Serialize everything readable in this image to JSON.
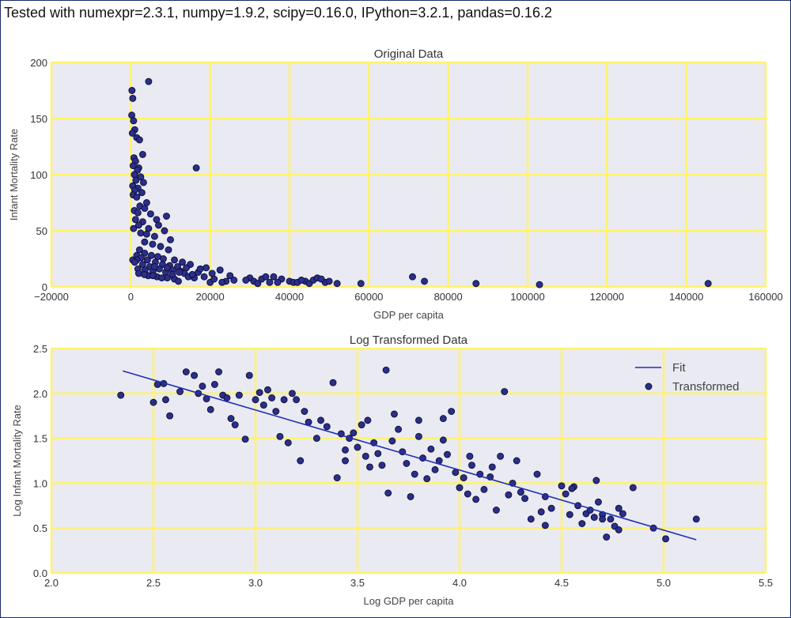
{
  "header": {
    "text": "Tested with numexpr=2.3.1, numpy=1.9.2, scipy=0.16.0, IPython=3.2.1, pandas=0.16.2"
  },
  "colors": {
    "background": "#eaeaf2",
    "grid": "#fff36b",
    "marker_fill": "#2b2f8a",
    "marker_edge": "#0b0c33",
    "fit_line": "#1f2fb5"
  },
  "chart_data": [
    {
      "type": "scatter",
      "title": "Original Data",
      "xlabel": "GDP per capita",
      "ylabel": "Infant Mortality Rate",
      "xlim": [
        -20000,
        160000
      ],
      "ylim": [
        0,
        200
      ],
      "xticks": [
        -20000,
        0,
        20000,
        40000,
        60000,
        80000,
        100000,
        120000,
        140000,
        160000
      ],
      "yticks": [
        0,
        50,
        100,
        150,
        200
      ],
      "xtick_labels": [
        "−20000",
        "0",
        "20000",
        "40000",
        "60000",
        "80000",
        "100000",
        "120000",
        "140000",
        "160000"
      ],
      "ytick_labels": [
        "0",
        "50",
        "100",
        "150",
        "200"
      ],
      "grid": true,
      "series": [
        {
          "points": [
            [
              300,
              175
            ],
            [
              500,
              168
            ],
            [
              250,
              153
            ],
            [
              700,
              148
            ],
            [
              1000,
              140
            ],
            [
              400,
              137
            ],
            [
              1500,
              133
            ],
            [
              2200,
              131
            ],
            [
              4500,
              183
            ],
            [
              3000,
              118
            ],
            [
              800,
              115
            ],
            [
              1200,
              112
            ],
            [
              600,
              108
            ],
            [
              2000,
              106
            ],
            [
              1700,
              104
            ],
            [
              900,
              100
            ],
            [
              2500,
              98
            ],
            [
              1300,
              95
            ],
            [
              3200,
              93
            ],
            [
              500,
              90
            ],
            [
              1800,
              88
            ],
            [
              1000,
              86
            ],
            [
              2800,
              84
            ],
            [
              600,
              82
            ],
            [
              1500,
              80
            ],
            [
              4000,
              75
            ],
            [
              2300,
              72
            ],
            [
              3500,
              70
            ],
            [
              900,
              68
            ],
            [
              1800,
              66
            ],
            [
              5000,
              65
            ],
            [
              6500,
              60
            ],
            [
              9000,
              63
            ],
            [
              3000,
              58
            ],
            [
              7000,
              55
            ],
            [
              4500,
              52
            ],
            [
              8500,
              50
            ],
            [
              2500,
              48
            ],
            [
              6000,
              45
            ],
            [
              10000,
              42
            ],
            [
              3500,
              40
            ],
            [
              5500,
              38
            ],
            [
              16500,
              106
            ],
            [
              1200,
              60
            ],
            [
              2000,
              55
            ],
            [
              700,
              52
            ],
            [
              4000,
              47
            ],
            [
              7500,
              36
            ],
            [
              9500,
              33
            ],
            [
              2200,
              33
            ],
            [
              3500,
              30
            ],
            [
              5200,
              28
            ],
            [
              6800,
              27
            ],
            [
              8200,
              25
            ],
            [
              11000,
              24
            ],
            [
              13000,
              22
            ],
            [
              15000,
              20
            ],
            [
              1500,
              28
            ],
            [
              2600,
              26
            ],
            [
              4200,
              24
            ],
            [
              6200,
              22
            ],
            [
              8000,
              20
            ],
            [
              9800,
              19
            ],
            [
              11800,
              18
            ],
            [
              14000,
              17
            ],
            [
              3000,
              20
            ],
            [
              4800,
              18
            ],
            [
              7200,
              16
            ],
            [
              10500,
              15
            ],
            [
              12500,
              14
            ],
            [
              1800,
              16
            ],
            [
              3600,
              15
            ],
            [
              5600,
              14
            ],
            [
              8800,
              13
            ],
            [
              13500,
              12
            ],
            [
              2000,
              12
            ],
            [
              4400,
              10
            ],
            [
              6600,
              9
            ],
            [
              9200,
              8
            ],
            [
              11000,
              7
            ],
            [
              14500,
              9
            ],
            [
              16000,
              8
            ],
            [
              19000,
              17
            ],
            [
              20500,
              12
            ],
            [
              22500,
              15
            ],
            [
              25000,
              10
            ],
            [
              24000,
              5
            ],
            [
              20000,
              4
            ],
            [
              21000,
              7
            ],
            [
              23000,
              4
            ],
            [
              26000,
              6
            ],
            [
              30000,
              8
            ],
            [
              31000,
              5
            ],
            [
              33000,
              7
            ],
            [
              34000,
              9
            ],
            [
              35000,
              4
            ],
            [
              36000,
              9
            ],
            [
              38000,
              7
            ],
            [
              40000,
              5
            ],
            [
              41000,
              4
            ],
            [
              42000,
              4
            ],
            [
              44000,
              5
            ],
            [
              45000,
              3
            ],
            [
              46000,
              6
            ],
            [
              47000,
              8
            ],
            [
              49000,
              4
            ],
            [
              50000,
              5
            ],
            [
              52000,
              3
            ],
            [
              58000,
              3
            ],
            [
              71000,
              9
            ],
            [
              74000,
              5
            ],
            [
              87000,
              3
            ],
            [
              103000,
              2
            ],
            [
              145500,
              3
            ],
            [
              12000,
              5
            ],
            [
              15500,
              11
            ],
            [
              17000,
              13
            ],
            [
              18500,
              9
            ],
            [
              10500,
              11
            ],
            [
              7800,
              8
            ],
            [
              5600,
              10
            ],
            [
              3400,
              11
            ],
            [
              1500,
              24
            ],
            [
              500,
              24
            ],
            [
              1000,
              22
            ],
            [
              6000,
              18
            ],
            [
              9200,
              17
            ],
            [
              12200,
              13
            ],
            [
              17500,
              16
            ],
            [
              29000,
              6
            ],
            [
              32000,
              3
            ],
            [
              37000,
              4
            ],
            [
              43000,
              6
            ],
            [
              48000,
              7
            ]
          ]
        }
      ]
    },
    {
      "type": "scatter",
      "title": "Log Transformed Data",
      "xlabel": "Log GDP per capita",
      "ylabel": "Log Infant Mortality Rate",
      "xlim": [
        2.0,
        5.5
      ],
      "ylim": [
        0.0,
        2.5
      ],
      "xticks": [
        2.0,
        2.5,
        3.0,
        3.5,
        4.0,
        4.5,
        5.0,
        5.5
      ],
      "yticks": [
        0.0,
        0.5,
        1.0,
        1.5,
        2.0,
        2.5
      ],
      "xtick_labels": [
        "2.0",
        "2.5",
        "3.0",
        "3.5",
        "4.0",
        "4.5",
        "5.0",
        "5.5"
      ],
      "ytick_labels": [
        "0.0",
        "0.5",
        "1.0",
        "1.5",
        "2.0",
        "2.5"
      ],
      "grid": true,
      "legend_position": "top-right",
      "series": [
        {
          "name": "Fit",
          "kind": "line",
          "points": [
            [
              2.35,
              2.25
            ],
            [
              5.16,
              0.37
            ]
          ]
        },
        {
          "name": "Transformed",
          "kind": "scatter",
          "points": [
            [
              2.34,
              1.98
            ],
            [
              2.52,
              2.1
            ],
            [
              2.55,
              2.11
            ],
            [
              2.5,
              1.9
            ],
            [
              2.56,
              1.93
            ],
            [
              2.58,
              1.75
            ],
            [
              2.63,
              2.02
            ],
            [
              2.66,
              2.24
            ],
            [
              2.7,
              2.2
            ],
            [
              2.72,
              2.0
            ],
            [
              2.74,
              2.08
            ],
            [
              2.76,
              1.94
            ],
            [
              2.78,
              1.82
            ],
            [
              2.8,
              2.1
            ],
            [
              2.82,
              2.24
            ],
            [
              2.84,
              1.98
            ],
            [
              2.86,
              1.95
            ],
            [
              2.88,
              1.72
            ],
            [
              2.9,
              1.65
            ],
            [
              2.92,
              1.98
            ],
            [
              2.95,
              1.49
            ],
            [
              2.97,
              2.2
            ],
            [
              3.0,
              1.93
            ],
            [
              3.02,
              2.01
            ],
            [
              3.04,
              1.87
            ],
            [
              3.06,
              2.04
            ],
            [
              3.08,
              1.95
            ],
            [
              3.1,
              1.8
            ],
            [
              3.12,
              1.52
            ],
            [
              3.14,
              1.93
            ],
            [
              3.16,
              1.45
            ],
            [
              3.18,
              2.0
            ],
            [
              3.2,
              1.93
            ],
            [
              3.22,
              1.25
            ],
            [
              3.24,
              1.8
            ],
            [
              3.26,
              1.68
            ],
            [
              3.3,
              1.5
            ],
            [
              3.32,
              1.7
            ],
            [
              3.35,
              1.63
            ],
            [
              3.38,
              2.12
            ],
            [
              3.4,
              1.06
            ],
            [
              3.42,
              1.55
            ],
            [
              3.44,
              1.37
            ],
            [
              3.46,
              1.5
            ],
            [
              3.48,
              1.56
            ],
            [
              3.5,
              1.4
            ],
            [
              3.52,
              1.65
            ],
            [
              3.54,
              1.3
            ],
            [
              3.56,
              1.18
            ],
            [
              3.58,
              1.45
            ],
            [
              3.6,
              1.33
            ],
            [
              3.62,
              1.2
            ],
            [
              3.64,
              2.26
            ],
            [
              3.65,
              0.89
            ],
            [
              3.67,
              1.47
            ],
            [
              3.7,
              1.6
            ],
            [
              3.72,
              1.35
            ],
            [
              3.74,
              1.22
            ],
            [
              3.76,
              0.85
            ],
            [
              3.78,
              1.1
            ],
            [
              3.8,
              1.7
            ],
            [
              3.82,
              1.28
            ],
            [
              3.84,
              1.05
            ],
            [
              3.86,
              1.38
            ],
            [
              3.88,
              1.15
            ],
            [
              3.9,
              1.25
            ],
            [
              3.92,
              1.48
            ],
            [
              3.94,
              1.32
            ],
            [
              3.96,
              1.8
            ],
            [
              3.98,
              1.12
            ],
            [
              4.0,
              0.95
            ],
            [
              4.02,
              1.06
            ],
            [
              4.04,
              0.88
            ],
            [
              4.06,
              1.2
            ],
            [
              4.08,
              0.82
            ],
            [
              4.1,
              1.1
            ],
            [
              4.12,
              0.93
            ],
            [
              4.15,
              1.07
            ],
            [
              4.18,
              0.7
            ],
            [
              4.2,
              1.3
            ],
            [
              4.22,
              2.02
            ],
            [
              4.24,
              0.87
            ],
            [
              4.26,
              1.0
            ],
            [
              4.3,
              0.9
            ],
            [
              4.32,
              0.83
            ],
            [
              4.35,
              0.6
            ],
            [
              4.38,
              1.1
            ],
            [
              4.4,
              0.68
            ],
            [
              4.42,
              0.53
            ],
            [
              4.45,
              0.72
            ],
            [
              4.5,
              0.97
            ],
            [
              4.52,
              0.88
            ],
            [
              4.54,
              0.65
            ],
            [
              4.56,
              0.96
            ],
            [
              4.58,
              0.75
            ],
            [
              4.6,
              0.55
            ],
            [
              4.62,
              0.66
            ],
            [
              4.64,
              0.7
            ],
            [
              4.66,
              0.62
            ],
            [
              4.68,
              0.79
            ],
            [
              4.7,
              0.65
            ],
            [
              4.72,
              0.4
            ],
            [
              4.74,
              0.6
            ],
            [
              4.76,
              0.52
            ],
            [
              4.78,
              0.72
            ],
            [
              4.8,
              0.66
            ],
            [
              4.85,
              0.95
            ],
            [
              4.95,
              0.5
            ],
            [
              5.01,
              0.38
            ],
            [
              5.16,
              0.6
            ],
            [
              3.44,
              1.25
            ],
            [
              3.55,
              1.7
            ],
            [
              3.68,
              1.77
            ],
            [
              3.8,
              1.52
            ],
            [
              3.92,
              1.72
            ],
            [
              4.05,
              1.3
            ],
            [
              4.16,
              1.18
            ],
            [
              4.28,
              1.25
            ],
            [
              4.42,
              0.85
            ],
            [
              4.55,
              0.94
            ],
            [
              4.67,
              1.03
            ],
            [
              4.7,
              0.6
            ],
            [
              4.78,
              0.48
            ]
          ]
        }
      ]
    }
  ]
}
